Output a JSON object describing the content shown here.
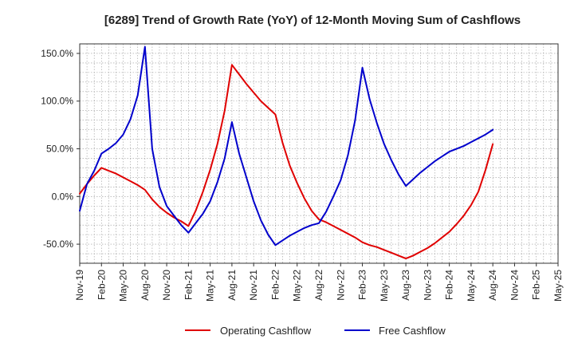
{
  "chart_data": {
    "type": "line",
    "title": "[6289]  Trend of Growth Rate (YoY) of 12-Month Moving Sum of Cashflows",
    "xlabel": "",
    "ylabel": "",
    "x_ticks": [
      "Nov-19",
      "Feb-20",
      "May-20",
      "Aug-20",
      "Nov-20",
      "Feb-21",
      "May-21",
      "Aug-21",
      "Nov-21",
      "Feb-22",
      "May-22",
      "Aug-22",
      "Nov-22",
      "Feb-23",
      "May-23",
      "Aug-23",
      "Nov-23",
      "Feb-24",
      "May-24",
      "Aug-24",
      "Nov-24",
      "Feb-25",
      "May-25"
    ],
    "y_ticks": [
      150,
      100,
      50,
      0,
      -50
    ],
    "y_tick_labels": [
      "150.0%",
      "100.0%",
      "50.0%",
      "0.0%",
      "-50.0%"
    ],
    "ylim": [
      -70,
      160
    ],
    "grid": true,
    "legend_position": "bottom",
    "colors": {
      "operating": "#e00000",
      "free": "#0000cc",
      "grid": "#999999",
      "axis": "#333333"
    },
    "series": [
      {
        "name": "Operating Cashflow",
        "color": "#e00000",
        "values": [
          [
            "Nov-19",
            3
          ],
          [
            "Dec-19",
            13
          ],
          [
            "Jan-20",
            22
          ],
          [
            "Feb-20",
            30
          ],
          [
            "Mar-20",
            27
          ],
          [
            "Apr-20",
            24
          ],
          [
            "May-20",
            20
          ],
          [
            "Jun-20",
            16
          ],
          [
            "Jul-20",
            12
          ],
          [
            "Aug-20",
            7
          ],
          [
            "Sep-20",
            -3
          ],
          [
            "Oct-20",
            -11
          ],
          [
            "Nov-20",
            -17
          ],
          [
            "Dec-20",
            -22
          ],
          [
            "Jan-21",
            -26
          ],
          [
            "Feb-21",
            -31
          ],
          [
            "Mar-21",
            -15
          ],
          [
            "Apr-21",
            5
          ],
          [
            "May-21",
            28
          ],
          [
            "Jun-21",
            55
          ],
          [
            "Jul-21",
            90
          ],
          [
            "Aug-21",
            138
          ],
          [
            "Sep-21",
            128
          ],
          [
            "Oct-21",
            118
          ],
          [
            "Nov-21",
            109
          ],
          [
            "Dec-21",
            100
          ],
          [
            "Jan-22",
            93
          ],
          [
            "Feb-22",
            86
          ],
          [
            "Mar-22",
            56
          ],
          [
            "Apr-22",
            32
          ],
          [
            "May-22",
            14
          ],
          [
            "Jun-22",
            -2
          ],
          [
            "Jul-22",
            -15
          ],
          [
            "Aug-22",
            -24
          ],
          [
            "Sep-22",
            -27
          ],
          [
            "Oct-22",
            -31
          ],
          [
            "Nov-22",
            -35
          ],
          [
            "Dec-22",
            -39
          ],
          [
            "Jan-23",
            -43
          ],
          [
            "Feb-23",
            -48
          ],
          [
            "Mar-23",
            -51
          ],
          [
            "Apr-23",
            -53
          ],
          [
            "May-23",
            -56
          ],
          [
            "Jun-23",
            -59
          ],
          [
            "Jul-23",
            -62
          ],
          [
            "Aug-23",
            -65
          ],
          [
            "Sep-23",
            -62
          ],
          [
            "Oct-23",
            -58
          ],
          [
            "Nov-23",
            -54
          ],
          [
            "Dec-23",
            -49
          ],
          [
            "Jan-24",
            -43
          ],
          [
            "Feb-24",
            -37
          ],
          [
            "Mar-24",
            -29
          ],
          [
            "Apr-24",
            -20
          ],
          [
            "May-24",
            -9
          ],
          [
            "Jun-24",
            5
          ],
          [
            "Jul-24",
            28
          ],
          [
            "Aug-24",
            55
          ]
        ]
      },
      {
        "name": "Free Cashflow",
        "color": "#0000cc",
        "values": [
          [
            "Nov-19",
            -15
          ],
          [
            "Dec-19",
            13
          ],
          [
            "Jan-20",
            27
          ],
          [
            "Feb-20",
            45
          ],
          [
            "Mar-20",
            50
          ],
          [
            "Apr-20",
            56
          ],
          [
            "May-20",
            65
          ],
          [
            "Jun-20",
            81
          ],
          [
            "Jul-20",
            106
          ],
          [
            "Aug-20",
            157
          ],
          [
            "Sep-20",
            50
          ],
          [
            "Oct-20",
            10
          ],
          [
            "Nov-20",
            -10
          ],
          [
            "Dec-20",
            -20
          ],
          [
            "Jan-21",
            -30
          ],
          [
            "Feb-21",
            -38
          ],
          [
            "Mar-21",
            -28
          ],
          [
            "Apr-21",
            -18
          ],
          [
            "May-21",
            -5
          ],
          [
            "Jun-21",
            15
          ],
          [
            "Jul-21",
            40
          ],
          [
            "Aug-21",
            78
          ],
          [
            "Sep-21",
            45
          ],
          [
            "Oct-21",
            20
          ],
          [
            "Nov-21",
            -5
          ],
          [
            "Dec-21",
            -25
          ],
          [
            "Jan-22",
            -40
          ],
          [
            "Feb-22",
            -51
          ],
          [
            "Mar-22",
            -46
          ],
          [
            "Apr-22",
            -41
          ],
          [
            "May-22",
            -37
          ],
          [
            "Jun-22",
            -33
          ],
          [
            "Jul-22",
            -30
          ],
          [
            "Aug-22",
            -28
          ],
          [
            "Sep-22",
            -16
          ],
          [
            "Oct-22",
            0
          ],
          [
            "Nov-22",
            17
          ],
          [
            "Dec-22",
            43
          ],
          [
            "Jan-23",
            80
          ],
          [
            "Feb-23",
            135
          ],
          [
            "Mar-23",
            102
          ],
          [
            "Apr-23",
            77
          ],
          [
            "May-23",
            55
          ],
          [
            "Jun-23",
            38
          ],
          [
            "Jul-23",
            23
          ],
          [
            "Aug-23",
            11
          ],
          [
            "Sep-23",
            18
          ],
          [
            "Oct-23",
            25
          ],
          [
            "Nov-23",
            31
          ],
          [
            "Dec-23",
            37
          ],
          [
            "Jan-24",
            42
          ],
          [
            "Feb-24",
            47
          ],
          [
            "Mar-24",
            50
          ],
          [
            "Apr-24",
            53
          ],
          [
            "May-24",
            57
          ],
          [
            "Jun-24",
            61
          ],
          [
            "Jul-24",
            65
          ],
          [
            "Aug-24",
            70
          ]
        ]
      }
    ]
  }
}
